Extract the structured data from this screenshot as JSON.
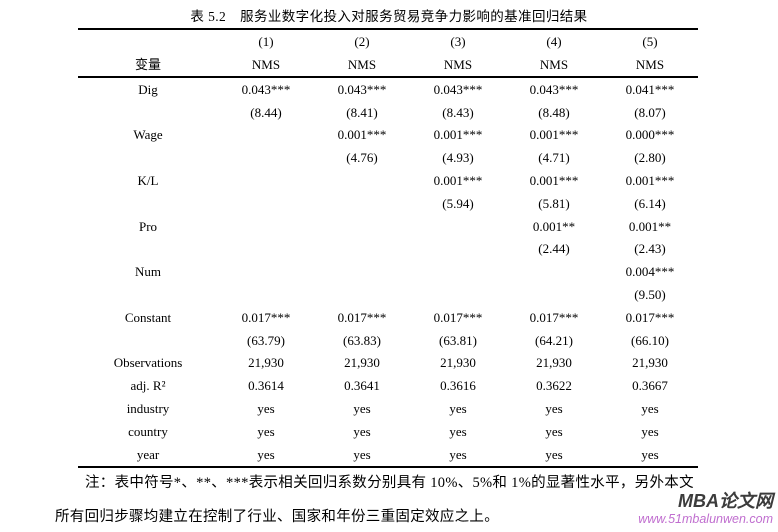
{
  "page": {
    "title": "表 5.2　服务业数字化投入对服务贸易竞争力影响的基准回归结果"
  },
  "table": {
    "header_row1": [
      "",
      "(1)",
      "(2)",
      "(3)",
      "(4)",
      "(5)"
    ],
    "header_row2": [
      "变量",
      "NMS",
      "NMS",
      "NMS",
      "NMS",
      "NMS"
    ],
    "rows": [
      [
        "Dig",
        "0.043***",
        "0.043***",
        "0.043***",
        "0.043***",
        "0.041***"
      ],
      [
        "",
        "(8.44)",
        "(8.41)",
        "(8.43)",
        "(8.48)",
        "(8.07)"
      ],
      [
        "Wage",
        "",
        "0.001***",
        "0.001***",
        "0.001***",
        "0.000***"
      ],
      [
        "",
        "",
        "(4.76)",
        "(4.93)",
        "(4.71)",
        "(2.80)"
      ],
      [
        "K/L",
        "",
        "",
        "0.001***",
        "0.001***",
        "0.001***"
      ],
      [
        "",
        "",
        "",
        "(5.94)",
        "(5.81)",
        "(6.14)"
      ],
      [
        "Pro",
        "",
        "",
        "",
        "0.001**",
        "0.001**"
      ],
      [
        "",
        "",
        "",
        "",
        "(2.44)",
        "(2.43)"
      ],
      [
        "Num",
        "",
        "",
        "",
        "",
        "0.004***"
      ],
      [
        "",
        "",
        "",
        "",
        "",
        "(9.50)"
      ],
      [
        "Constant",
        "0.017***",
        "0.017***",
        "0.017***",
        "0.017***",
        "0.017***"
      ],
      [
        "",
        "(63.79)",
        "(63.83)",
        "(63.81)",
        "(64.21)",
        "(66.10)"
      ],
      [
        "Observations",
        "21,930",
        "21,930",
        "21,930",
        "21,930",
        "21,930"
      ],
      [
        "adj. R²",
        "0.3614",
        "0.3641",
        "0.3616",
        "0.3622",
        "0.3667"
      ],
      [
        "industry",
        "yes",
        "yes",
        "yes",
        "yes",
        "yes"
      ],
      [
        "country",
        "yes",
        "yes",
        "yes",
        "yes",
        "yes"
      ],
      [
        "year",
        "yes",
        "yes",
        "yes",
        "yes",
        "yes"
      ]
    ]
  },
  "note": {
    "line1": "注：表中符号*、**、***表示相关回归系数分别具有 10%、5%和 1%的显著性水平，另外本文",
    "line2": "所有回归步骤均建立在控制了行业、国家和年份三重固定效应之上。"
  },
  "watermark": {
    "site_name": "MBA论文网",
    "site_url": "www.51mbalunwen.com",
    "name_color": "#3c3c3c",
    "url_color": "#c06ecf"
  }
}
